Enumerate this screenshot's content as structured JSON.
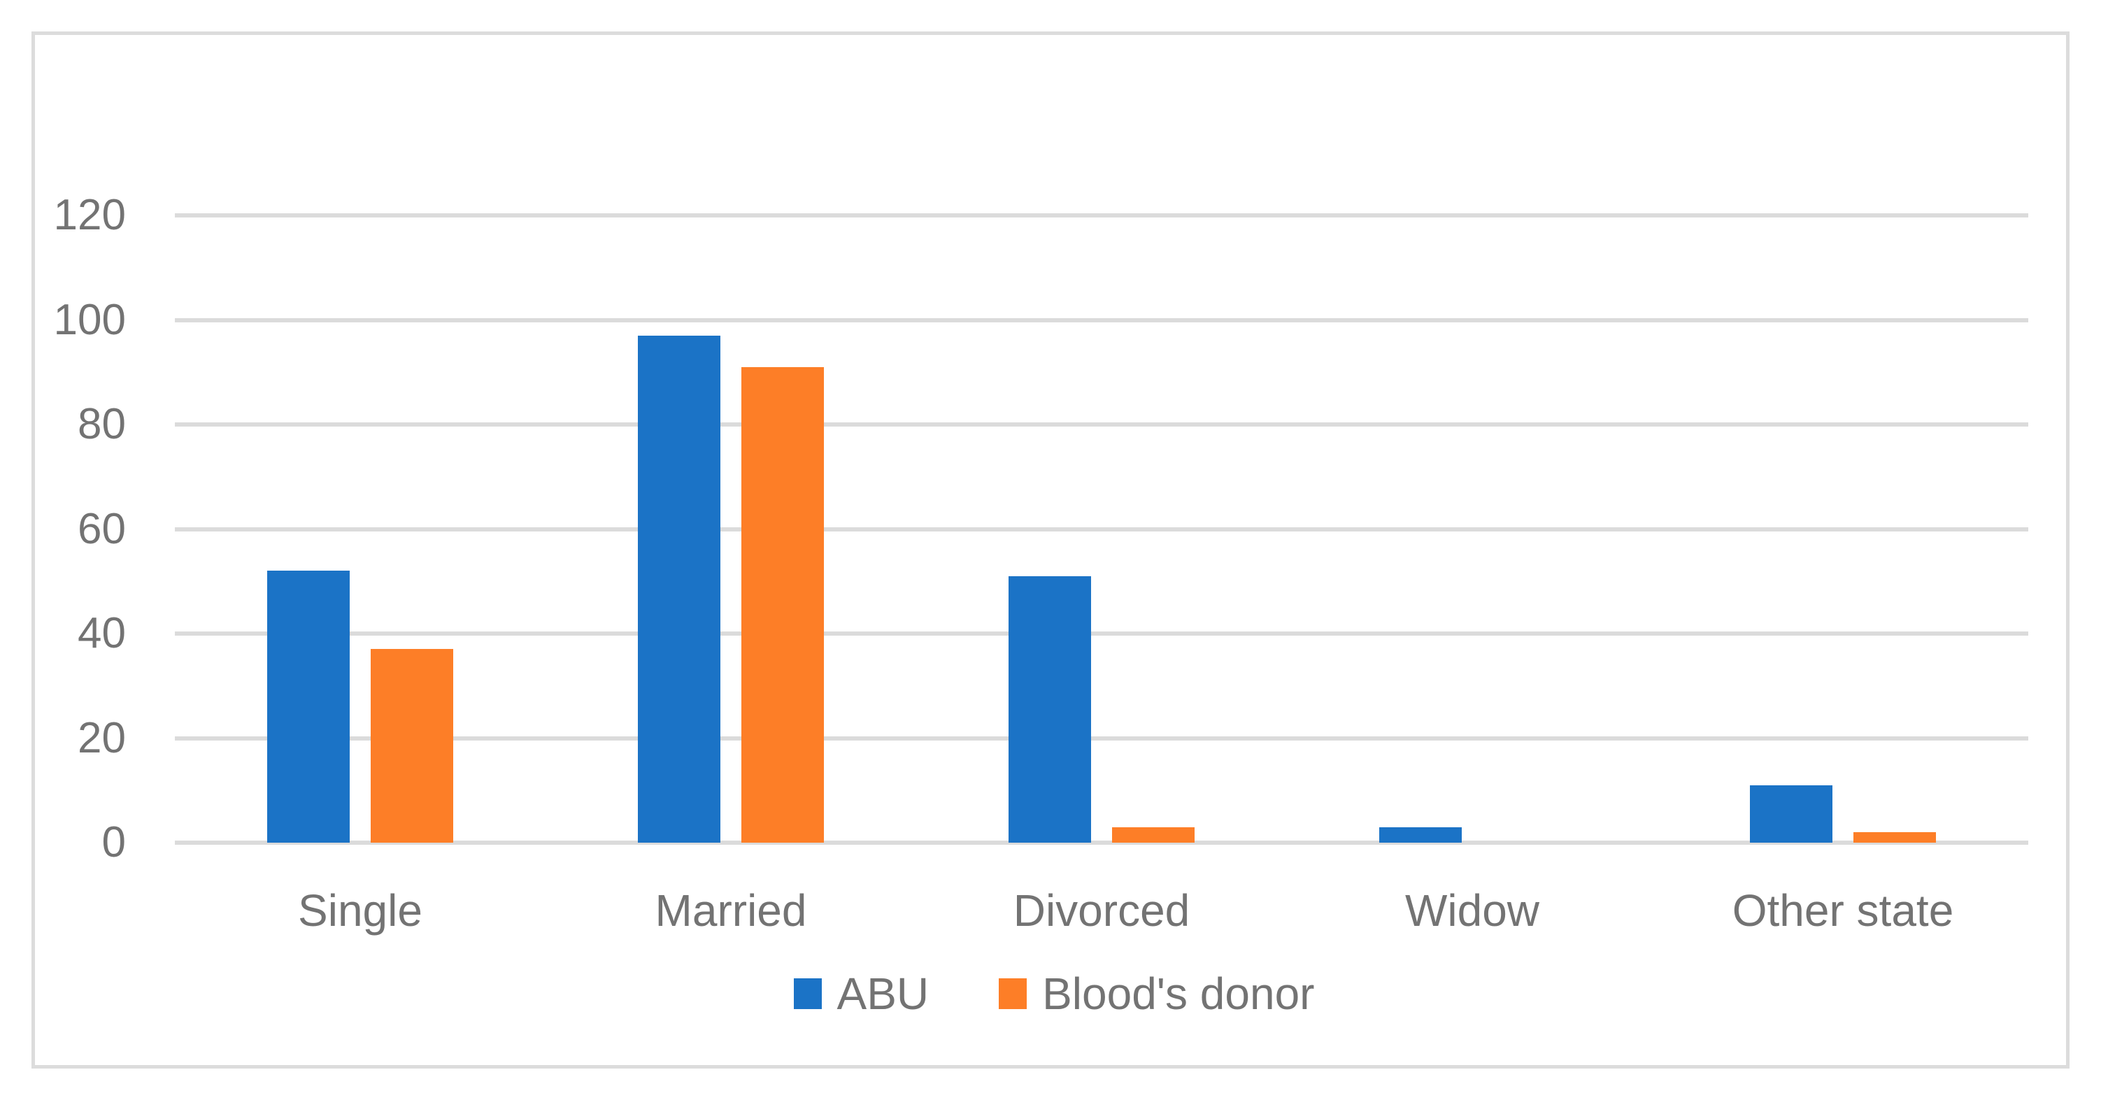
{
  "chart_data": {
    "type": "bar",
    "title": "",
    "xlabel": "",
    "ylabel": "",
    "categories": [
      "Single",
      "Married",
      "Divorced",
      "Widow",
      "Other state"
    ],
    "series": [
      {
        "name": "ABU",
        "color": "#1B73C6",
        "values": [
          52,
          97,
          51,
          3,
          11
        ]
      },
      {
        "name": "Blood's donor",
        "color": "#FD7E27",
        "values": [
          37,
          91,
          3,
          0,
          2
        ]
      }
    ],
    "ylim": [
      0,
      120
    ],
    "yticks": [
      0,
      20,
      40,
      60,
      80,
      100,
      120
    ],
    "ytick_interval": 20,
    "grid": true,
    "gridline_color": "#DBDBDB",
    "axis_text_color": "#737373",
    "legend_position": "bottom",
    "background_color": "#FFFFFF",
    "figure_border_color": "#DCDCDC"
  }
}
